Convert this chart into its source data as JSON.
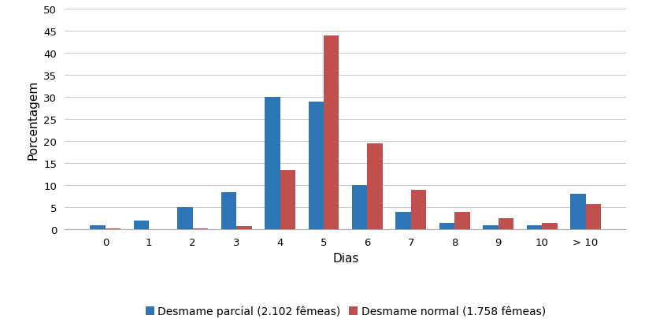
{
  "categories": [
    "0",
    "1",
    "2",
    "3",
    "4",
    "5",
    "6",
    "7",
    "8",
    "9",
    "10",
    "> 10"
  ],
  "parcial": [
    1.0,
    2.0,
    5.0,
    8.5,
    30.0,
    29.0,
    10.0,
    4.0,
    1.5,
    1.0,
    1.0,
    8.0
  ],
  "normal": [
    0.3,
    0.0,
    0.3,
    0.7,
    13.5,
    44.0,
    19.5,
    9.0,
    4.0,
    2.5,
    1.5,
    5.8
  ],
  "color_parcial": "#2E75B6",
  "color_normal": "#C0504D",
  "xlabel": "Dias",
  "ylabel": "Porcentagem",
  "ylim": [
    0,
    50
  ],
  "yticks": [
    0,
    5,
    10,
    15,
    20,
    25,
    30,
    35,
    40,
    45,
    50
  ],
  "legend_parcial": "Desmame parcial (2.102 fêmeas)",
  "legend_normal": "Desmame normal (1.758 fêmeas)",
  "background_color": "#FFFFFF",
  "bar_width": 0.35,
  "grid_color": "#CCCCCC",
  "figsize": [
    8.2,
    4.06
  ],
  "dpi": 100
}
